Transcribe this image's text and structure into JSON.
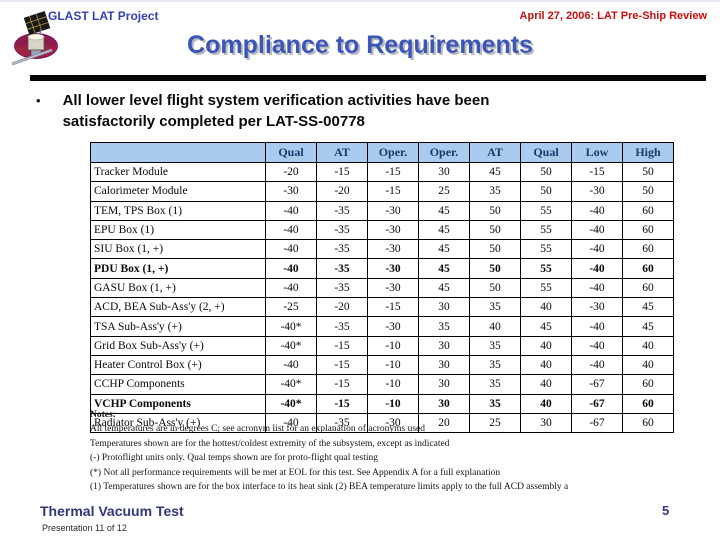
{
  "header": {
    "project": "GLAST LAT Project",
    "review": "April 27, 2006: LAT Pre-Ship Review",
    "title": "Compliance to Requirements"
  },
  "bullet": {
    "glyph": "•",
    "text": "All lower level flight system verification activities have been satisfactorily completed per LAT-SS-00778"
  },
  "table": {
    "columns": [
      "",
      "Qual",
      "AT",
      "Oper.",
      "Oper.",
      "AT",
      "Qual",
      "Low",
      "High"
    ],
    "rows": [
      {
        "label": "Tracker Module",
        "values": [
          "-20",
          "-15",
          "-15",
          "30",
          "45",
          "50",
          "-15",
          "50"
        ],
        "bold": false
      },
      {
        "label": "Calorimeter Module",
        "values": [
          "-30",
          "-20",
          "-15",
          "25",
          "35",
          "50",
          "-30",
          "50"
        ],
        "bold": false
      },
      {
        "label": "TEM, TPS Box (1)",
        "values": [
          "-40",
          "-35",
          "-30",
          "45",
          "50",
          "55",
          "-40",
          "60"
        ],
        "bold": false
      },
      {
        "label": "EPU Box (1)",
        "values": [
          "-40",
          "-35",
          "-30",
          "45",
          "50",
          "55",
          "-40",
          "60"
        ],
        "bold": false
      },
      {
        "label": "SIU Box (1, +)",
        "values": [
          "-40",
          "-35",
          "-30",
          "45",
          "50",
          "55",
          "-40",
          "60"
        ],
        "bold": false
      },
      {
        "label": "PDU Box (1, +)",
        "values": [
          "-40",
          "-35",
          "-30",
          "45",
          "50",
          "55",
          "-40",
          "60"
        ],
        "bold": true
      },
      {
        "label": "GASU Box (1, +)",
        "values": [
          "-40",
          "-35",
          "-30",
          "45",
          "50",
          "55",
          "-40",
          "60"
        ],
        "bold": false
      },
      {
        "label": "ACD, BEA Sub-Ass'y (2, +)",
        "values": [
          "-25",
          "-20",
          "-15",
          "30",
          "35",
          "40",
          "-30",
          "45"
        ],
        "bold": false
      },
      {
        "label": "TSA Sub-Ass'y (+)",
        "values": [
          "-40*",
          "-35",
          "-30",
          "35",
          "40",
          "45",
          "-40",
          "45"
        ],
        "bold": false
      },
      {
        "label": "Grid Box Sub-Ass'y (+)",
        "values": [
          "-40*",
          "-15",
          "-10",
          "30",
          "35",
          "40",
          "-40",
          "40"
        ],
        "bold": false
      },
      {
        "label": "Heater Control Box (+)",
        "values": [
          "-40",
          "-15",
          "-10",
          "30",
          "35",
          "40",
          "-40",
          "40"
        ],
        "bold": false
      },
      {
        "label": "CCHP Components",
        "values": [
          "-40*",
          "-15",
          "-10",
          "30",
          "35",
          "40",
          "-67",
          "60"
        ],
        "bold": false
      },
      {
        "label": "VCHP Components",
        "values": [
          "-40*",
          "-15",
          "-10",
          "30",
          "35",
          "40",
          "-67",
          "60"
        ],
        "bold": true
      },
      {
        "label": "Radiator Sub-Ass'y (+)",
        "values": [
          "-40",
          "-35",
          "-30",
          "20",
          "25",
          "30",
          "-67",
          "60"
        ],
        "bold": false
      }
    ]
  },
  "notes": {
    "heading": "Notes:",
    "lines": [
      "All temperatures are in degrees C;  see acronym list for an explanation of acronyms used",
      "Temperatures shown are for the hottest/coldest extremity of the subsystem, except as indicated",
      "(-) Protoflight units only.  Qual temps shown are for proto-flight qual testing",
      "(*) Not all performance requirements will be met at EOL for this test.  See Appendix A for a full explanation",
      "(1) Temperatures shown are for the box interface to its heat sink (2) BEA temperature limits apply to the full ACD assembly a"
    ]
  },
  "footer": {
    "section": "Thermal Vacuum Test",
    "presentation": "Presentation 11 of 12",
    "page": "5"
  },
  "icons": {
    "logo": "glast-satellite-logo"
  },
  "colors": {
    "project_blue": "#3340b8",
    "review_red": "#cc0e0e",
    "title_blue": "#3a57b8",
    "table_header_bg": "#a8cbee",
    "table_header_text": "#1b3a68",
    "footer_navy": "#35357e"
  }
}
